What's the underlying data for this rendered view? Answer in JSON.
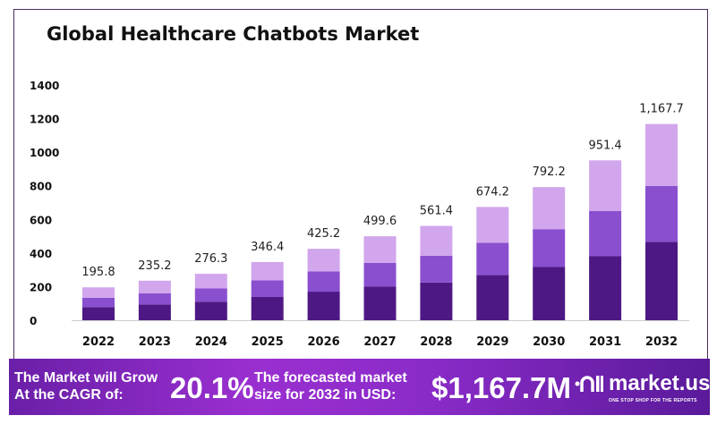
{
  "chart_data": {
    "type": "bar",
    "stacked": true,
    "title": "Global Healthcare Chatbots Market",
    "xlabel": "",
    "ylabel": "",
    "ylim": [
      0,
      1400
    ],
    "yticks": [
      0,
      200,
      400,
      600,
      800,
      1000,
      1200,
      1400
    ],
    "grid": false,
    "categories": [
      "2022",
      "2023",
      "2024",
      "2025",
      "2026",
      "2027",
      "2028",
      "2029",
      "2030",
      "2031",
      "2032"
    ],
    "totals_labels": [
      "195.8",
      "235.2",
      "276.3",
      "346.4",
      "425.2",
      "499.6",
      "561.4",
      "674.2",
      "792.2",
      "951.4",
      "1,167.7"
    ],
    "totals": [
      195.8,
      235.2,
      276.3,
      346.4,
      425.2,
      499.6,
      561.4,
      674.2,
      792.2,
      951.4,
      1167.7
    ],
    "series": [
      {
        "values": [
          78.3,
          94.1,
          110.5,
          138.6,
          170.1,
          199.8,
          224.6,
          269.7,
          316.9,
          380.6,
          467.1
        ],
        "color": "#4e1884"
      },
      {
        "values": [
          55.6,
          66.8,
          78.5,
          98.4,
          120.8,
          141.9,
          159.4,
          191.5,
          225.0,
          270.2,
          331.6
        ],
        "color": "#8a4fcf"
      },
      {
        "values": [
          61.9,
          74.3,
          87.3,
          109.4,
          134.3,
          157.9,
          177.4,
          213.0,
          250.3,
          300.6,
          369.0
        ],
        "color": "#d1a6ec"
      }
    ]
  },
  "banner": {
    "cagr_label_line1": "The Market will Grow",
    "cagr_label_line2": "At the CAGR of:",
    "cagr_value": "20.1%",
    "forecast_label_line1": "The forecasted market",
    "forecast_label_line2": "size for 2032 in USD:",
    "forecast_value": "$1,167.7M",
    "logo_text": "market.us",
    "logo_tagline": "ONE STOP SHOP FOR THE REPORTS"
  }
}
